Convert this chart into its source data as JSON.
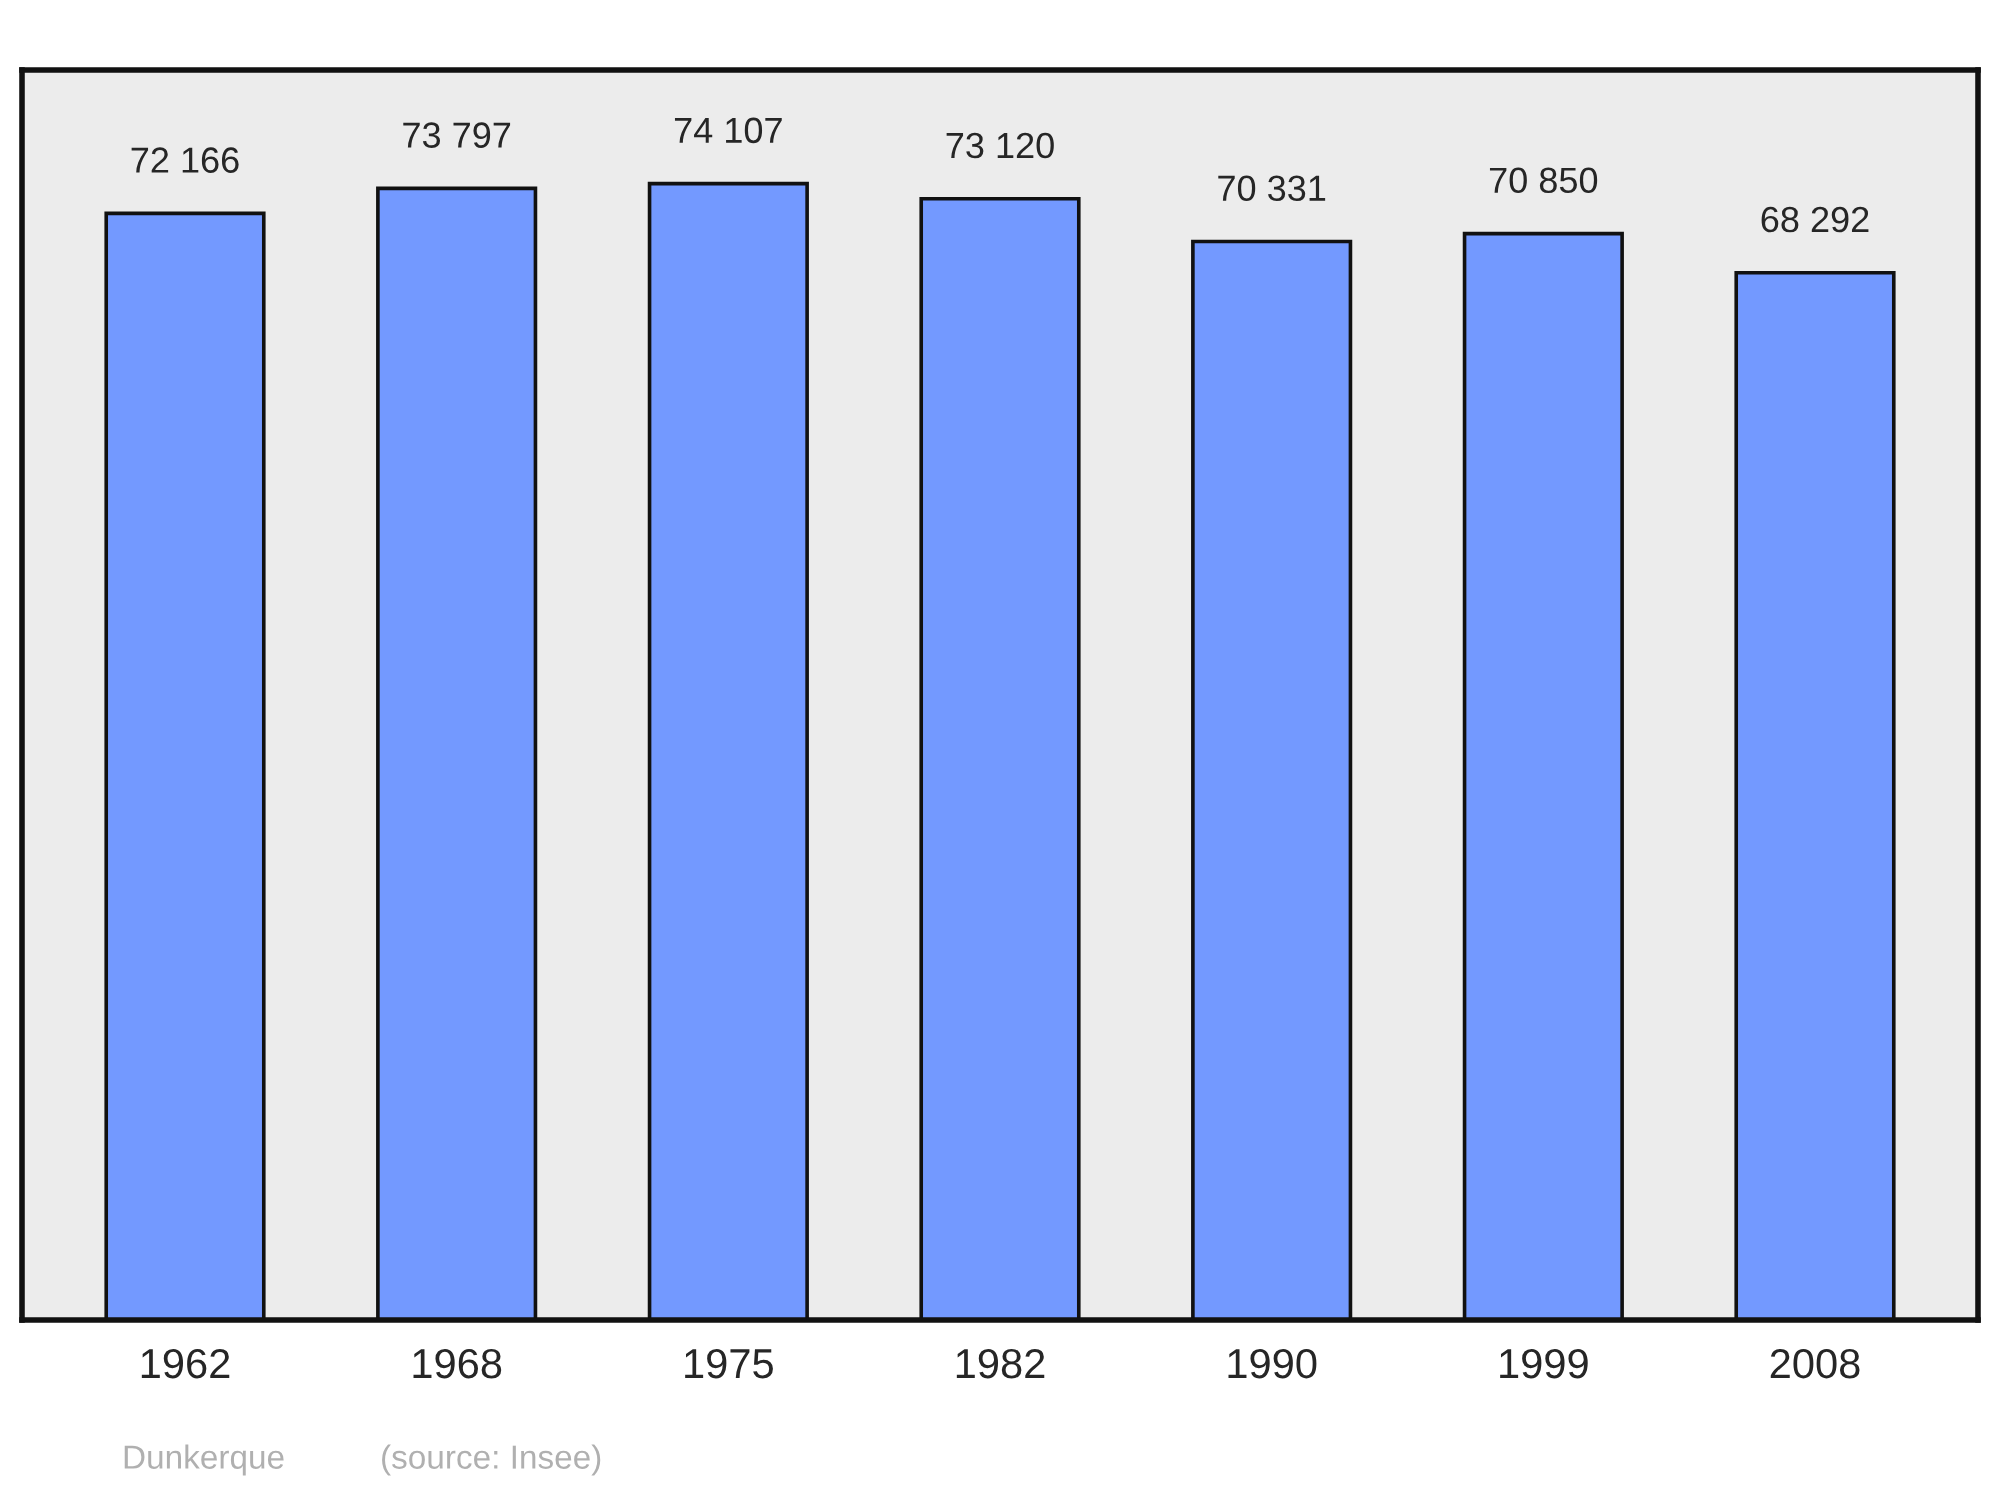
{
  "chart_data": {
    "type": "bar",
    "categories": [
      "1962",
      "1968",
      "1975",
      "1982",
      "1990",
      "1999",
      "2008"
    ],
    "values": [
      72166,
      73797,
      74107,
      73120,
      70331,
      70850,
      68292
    ],
    "value_labels": [
      "72 166",
      "73 797",
      "74 107",
      "73 120",
      "70 331",
      "70 850",
      "68 292"
    ],
    "color": "#7399ff",
    "tick_labels": "x",
    "grid": false,
    "legend": false,
    "annotations": [
      "Dunkerque",
      "(source: Insee)"
    ]
  }
}
